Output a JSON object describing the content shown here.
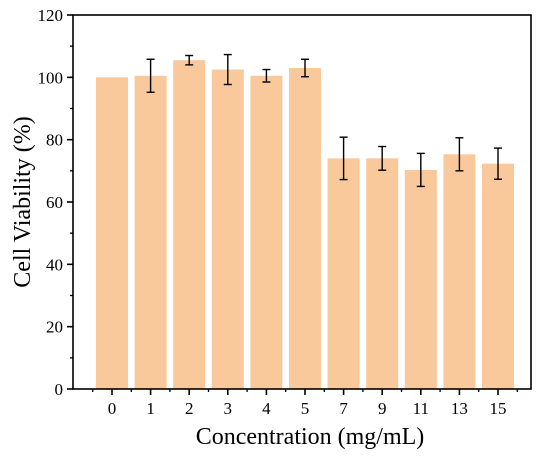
{
  "chart_data": {
    "type": "bar",
    "title": "",
    "xlabel": "Concentration (mg/mL)",
    "ylabel": "Cell Viability (%)",
    "categories": [
      "0",
      "1",
      "2",
      "3",
      "4",
      "5",
      "7",
      "9",
      "11",
      "13",
      "15"
    ],
    "values": [
      100,
      100.5,
      105.5,
      102.5,
      100.5,
      103,
      74,
      74,
      70.3,
      75.3,
      72.3
    ],
    "errors": [
      0,
      5.3,
      1.5,
      4.8,
      2.0,
      2.8,
      6.8,
      3.8,
      5.3,
      5.3,
      5.0
    ],
    "ylim": [
      0,
      120
    ],
    "yticks": [
      0,
      20,
      40,
      60,
      80,
      100,
      120
    ],
    "bar_color": "#f9c89b",
    "grid": false,
    "legend": "none"
  }
}
